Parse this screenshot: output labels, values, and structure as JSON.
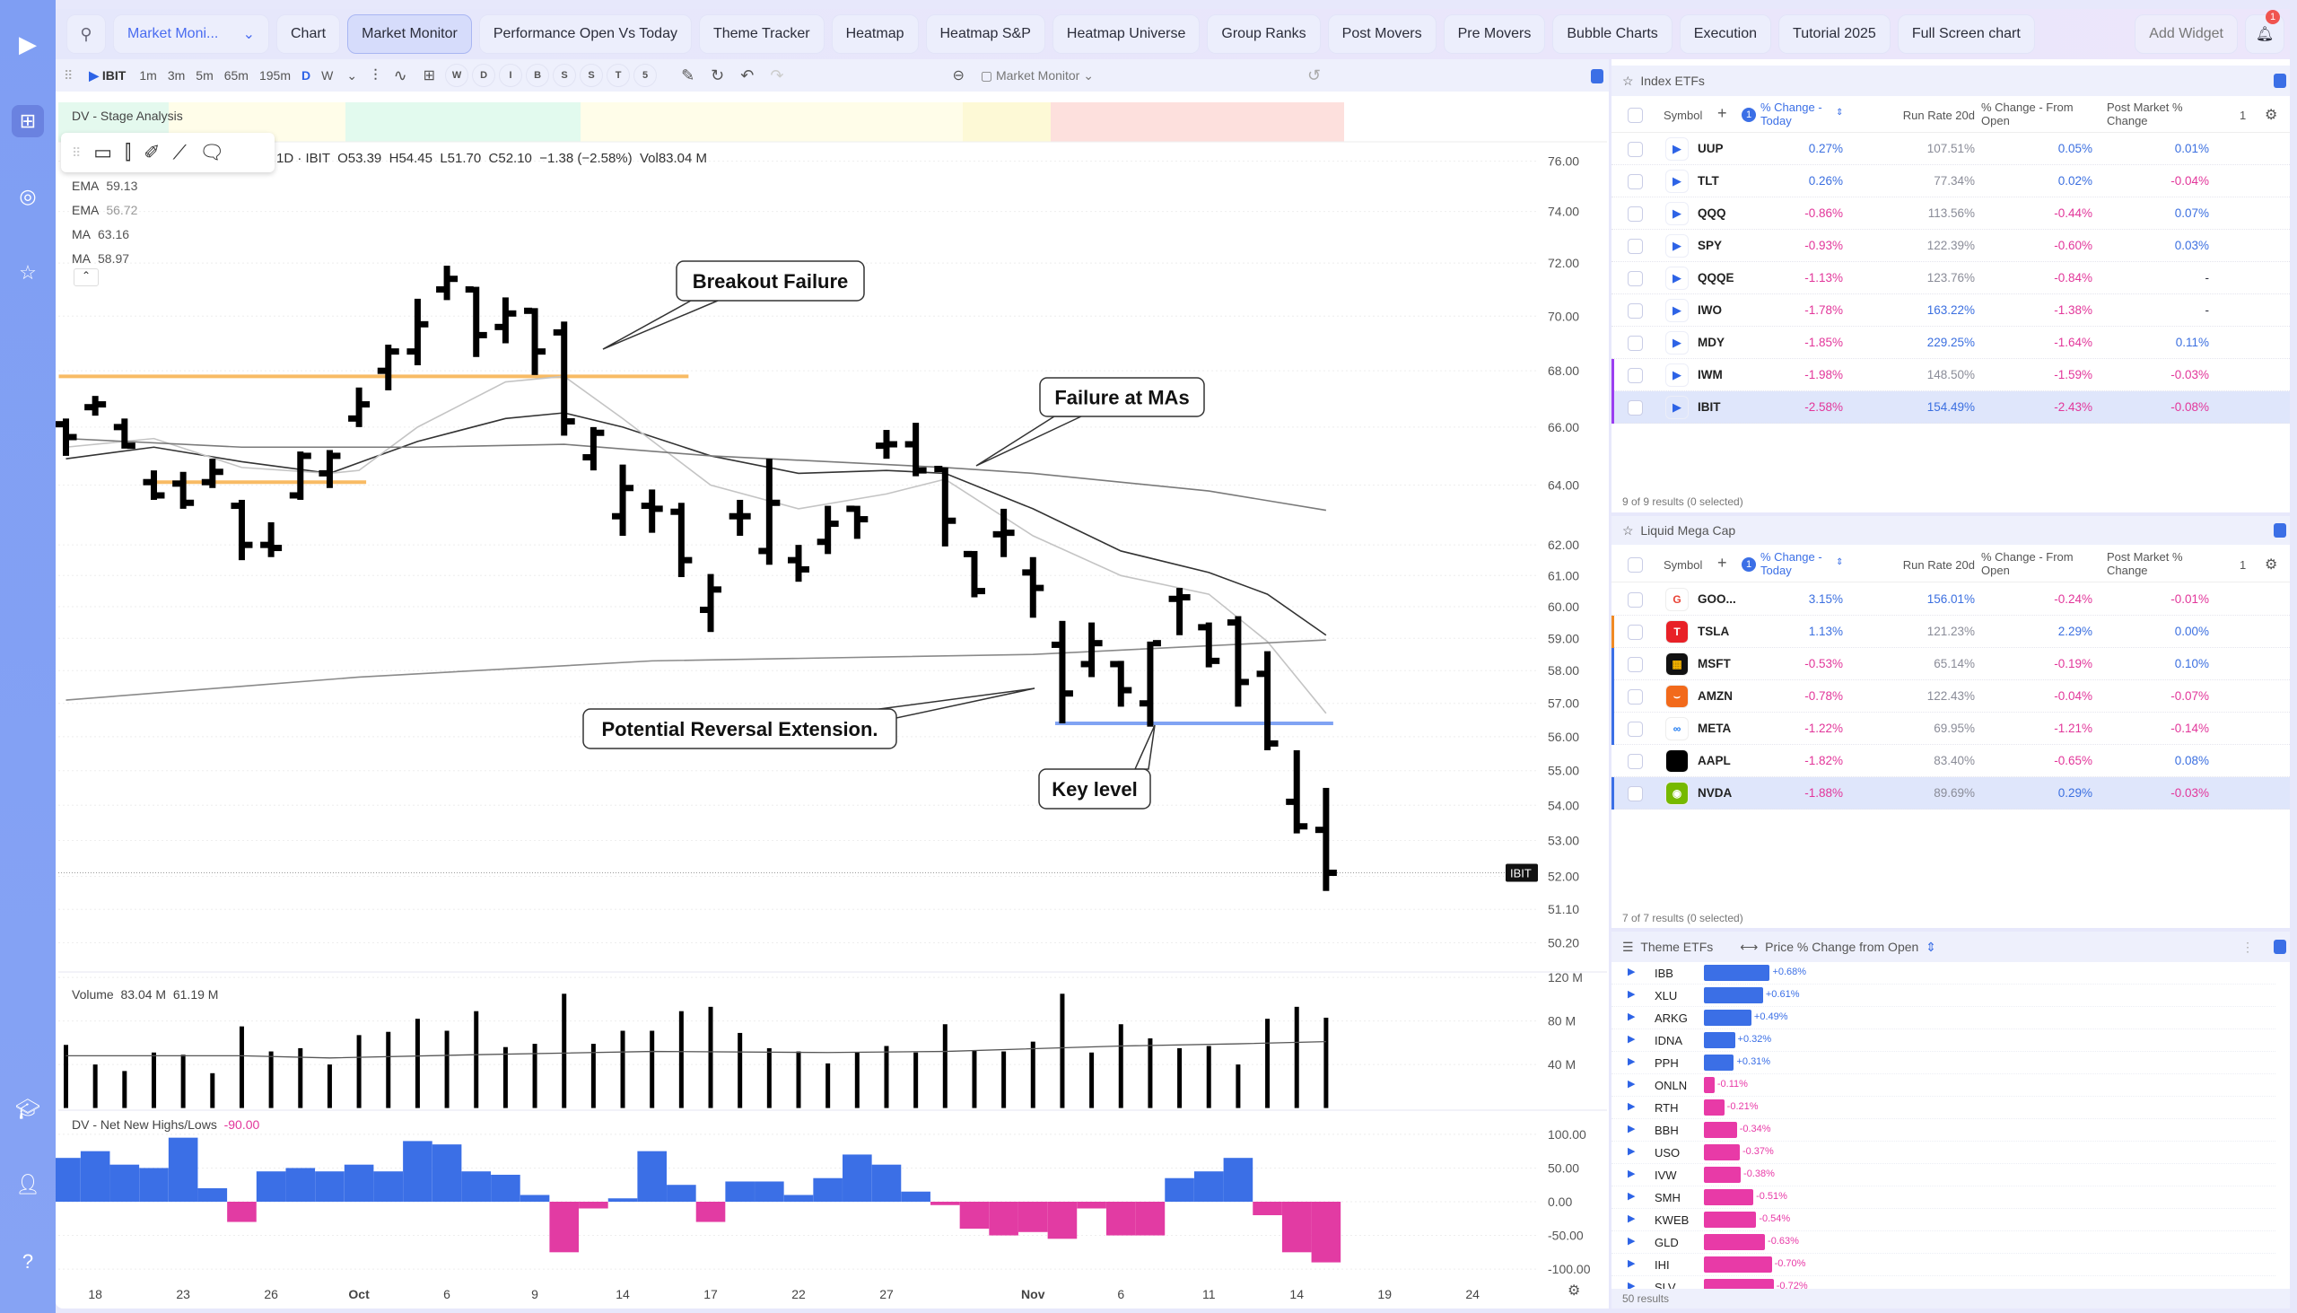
{
  "sidebar": {
    "icons": [
      "logo-icon",
      "layout-icon",
      "target-icon",
      "star-icon",
      "graduation-cap-icon",
      "user-crown-icon",
      "help-icon"
    ]
  },
  "topbar": {
    "layout_dropdown": "Market Moni...",
    "tabs": [
      "Chart",
      "Market Monitor",
      "Performance Open Vs Today",
      "Theme Tracker",
      "Heatmap",
      "Heatmap S&P",
      "Heatmap Universe",
      "Group Ranks",
      "Post Movers",
      "Pre Movers",
      "Bubble Charts",
      "Execution",
      "Tutorial 2025",
      "Full Screen chart"
    ],
    "active_tab": "Market Monitor",
    "add_widget": "Add Widget",
    "notification_count": "1"
  },
  "chart_toolbar": {
    "symbol": "IBIT",
    "intervals": [
      "1m",
      "3m",
      "5m",
      "65m",
      "195m",
      "D",
      "W"
    ],
    "active_interval": "D",
    "study_buttons": [
      "W",
      "D",
      "I",
      "B",
      "S",
      "S",
      "T",
      "5"
    ],
    "layout_name": "Market Monitor"
  },
  "chart": {
    "stage_label": "DV - Stage Analysis",
    "header": "1D · IBIT  O53.39  H54.45  L51.70  C52.10  −1.38 (−2.58%)  Vol83.04 M",
    "legends": [
      {
        "name": "EMA",
        "value": "59.13"
      },
      {
        "name": "EMA",
        "value": "56.72"
      },
      {
        "name": "MA",
        "value": "63.16"
      },
      {
        "name": "MA",
        "value": "58.97"
      }
    ],
    "price_tag": "IBIT",
    "last_price": 52.1,
    "price_ticks": [
      "76.00",
      "74.00",
      "72.00",
      "70.00",
      "68.00",
      "66.00",
      "64.00",
      "62.00",
      "61.00",
      "60.00",
      "59.00",
      "58.00",
      "57.00",
      "56.00",
      "55.00",
      "54.00",
      "53.00",
      "52.00",
      "51.10",
      "50.20"
    ],
    "ohlc": [
      [
        66.1,
        66.3,
        65.0,
        65.65
      ],
      [
        66.7,
        67.1,
        66.4,
        66.8
      ],
      [
        66.0,
        66.3,
        65.25,
        65.35
      ],
      [
        64.1,
        64.5,
        63.5,
        63.65
      ],
      [
        64.05,
        64.45,
        63.2,
        63.4
      ],
      [
        64.1,
        64.9,
        63.9,
        64.45
      ],
      [
        63.3,
        63.5,
        61.5,
        62.0
      ],
      [
        62.0,
        62.75,
        61.6,
        61.9
      ],
      [
        63.65,
        65.15,
        63.5,
        65.0
      ],
      [
        64.4,
        65.2,
        63.9,
        65.0
      ],
      [
        66.3,
        67.4,
        66.0,
        66.8
      ],
      [
        68.0,
        68.95,
        67.3,
        68.7
      ],
      [
        68.7,
        70.65,
        68.2,
        69.7
      ],
      [
        71.0,
        71.9,
        70.6,
        71.4
      ],
      [
        71.0,
        71.1,
        68.5,
        69.3
      ],
      [
        69.6,
        70.7,
        69.0,
        70.1
      ],
      [
        70.2,
        70.3,
        67.85,
        68.7
      ],
      [
        69.4,
        69.8,
        65.7,
        66.2
      ],
      [
        64.95,
        66.0,
        64.5,
        65.8
      ],
      [
        62.95,
        64.7,
        62.3,
        63.9
      ],
      [
        63.3,
        63.85,
        62.4,
        63.2
      ],
      [
        63.1,
        63.4,
        60.95,
        61.5
      ],
      [
        59.9,
        61.05,
        59.2,
        60.55
      ],
      [
        62.95,
        63.5,
        62.3,
        62.95
      ],
      [
        61.8,
        64.9,
        61.35,
        63.4
      ],
      [
        61.5,
        62.0,
        60.8,
        61.2
      ],
      [
        62.1,
        63.3,
        61.7,
        62.7
      ],
      [
        63.2,
        63.3,
        62.2,
        62.85
      ],
      [
        65.35,
        65.9,
        64.9,
        65.4
      ],
      [
        65.4,
        66.15,
        64.3,
        64.5
      ],
      [
        64.55,
        64.6,
        61.95,
        62.8
      ],
      [
        61.7,
        61.8,
        60.3,
        60.5
      ],
      [
        62.35,
        63.2,
        61.6,
        62.4
      ],
      [
        61.1,
        61.6,
        59.65,
        60.6
      ],
      [
        58.8,
        59.55,
        56.4,
        57.3
      ],
      [
        58.2,
        59.5,
        57.8,
        58.85
      ],
      [
        58.2,
        58.3,
        56.9,
        57.4
      ],
      [
        57.0,
        58.9,
        56.3,
        58.85
      ],
      [
        60.25,
        60.6,
        59.1,
        60.3
      ],
      [
        59.35,
        59.5,
        58.1,
        58.3
      ],
      [
        59.5,
        59.7,
        56.9,
        57.65
      ],
      [
        57.9,
        58.6,
        55.6,
        55.8
      ],
      [
        54.1,
        55.6,
        53.2,
        53.4
      ],
      [
        53.3,
        54.5,
        51.6,
        52.1
      ]
    ],
    "ma_lines": [
      {
        "label": "EMA 59.13",
        "color": "#333333",
        "points": [
          [
            0,
            64.9
          ],
          [
            3,
            65.3
          ],
          [
            6,
            64.8
          ],
          [
            9,
            64.4
          ],
          [
            12,
            65.5
          ],
          [
            15,
            66.3
          ],
          [
            17,
            66.5
          ],
          [
            19,
            66.0
          ],
          [
            22,
            65.0
          ],
          [
            25,
            64.4
          ],
          [
            28,
            64.5
          ],
          [
            30,
            64.4
          ],
          [
            33,
            63.2
          ],
          [
            36,
            61.8
          ],
          [
            39,
            61.1
          ],
          [
            41,
            60.4
          ],
          [
            43,
            59.1
          ]
        ]
      },
      {
        "label": "EMA 56.72",
        "color": "#c4c4c4",
        "points": [
          [
            0,
            65.3
          ],
          [
            3,
            65.6
          ],
          [
            6,
            64.6
          ],
          [
            9,
            64.4
          ],
          [
            10,
            64.5
          ],
          [
            12,
            66.0
          ],
          [
            15,
            67.6
          ],
          [
            17,
            67.8
          ],
          [
            19,
            66.3
          ],
          [
            22,
            64.0
          ],
          [
            25,
            63.2
          ],
          [
            28,
            63.7
          ],
          [
            30,
            64.2
          ],
          [
            33,
            62.3
          ],
          [
            36,
            61.0
          ],
          [
            39,
            60.4
          ],
          [
            41,
            58.9
          ],
          [
            43,
            56.7
          ]
        ]
      },
      {
        "label": "MA 63.16",
        "color": "#7a7a7a",
        "points": [
          [
            0,
            65.6
          ],
          [
            6,
            65.3
          ],
          [
            12,
            65.3
          ],
          [
            17,
            65.4
          ],
          [
            22,
            65.0
          ],
          [
            30,
            64.6
          ],
          [
            33,
            64.4
          ],
          [
            39,
            63.8
          ],
          [
            43,
            63.15
          ]
        ]
      },
      {
        "label": "MA 58.97",
        "color": "#8a8a8a",
        "points": [
          [
            0,
            57.1
          ],
          [
            10,
            57.8
          ],
          [
            20,
            58.3
          ],
          [
            33,
            58.5
          ],
          [
            43,
            58.95
          ]
        ]
      }
    ],
    "levels": [
      {
        "price": 67.8,
        "from": 0,
        "to": 21,
        "color": "#f7b04a"
      },
      {
        "price": 64.1,
        "from": 3,
        "to": 10,
        "color": "#f7b04a"
      },
      {
        "price": 56.4,
        "from": 34,
        "to": 43,
        "color": "#6b93f2"
      }
    ],
    "annotations": [
      "Breakout Failure",
      "Failure at MAs",
      "Potential Reversal Extension.",
      "Key level"
    ],
    "volume": {
      "label": "Volume",
      "value": "83.04 M",
      "ma_value": "61.19 M",
      "ticks": [
        "120 M",
        "80 M",
        "40 M"
      ],
      "values_m": [
        58,
        40,
        34,
        51,
        49,
        32,
        75,
        52,
        55,
        40,
        67,
        70,
        82,
        71,
        89,
        56,
        59,
        105,
        59,
        71,
        71,
        89,
        93,
        69,
        55,
        52,
        41,
        51,
        57,
        51,
        77,
        53,
        52,
        61,
        105,
        51,
        77,
        64,
        55,
        57,
        40,
        82,
        93,
        83
      ],
      "ma_m": [
        [
          0,
          48
        ],
        [
          6,
          48
        ],
        [
          9,
          46
        ],
        [
          14,
          49
        ],
        [
          20,
          52
        ],
        [
          26,
          51
        ],
        [
          30,
          52
        ],
        [
          36,
          57
        ],
        [
          40,
          59
        ],
        [
          43,
          61
        ]
      ]
    },
    "nhnl": {
      "label": "DV - Net New Highs/Lows",
      "value": "-90.00",
      "ticks": [
        "100.00",
        "50.00",
        "0.00",
        "-50.00",
        "-100.00"
      ],
      "values": [
        65,
        75,
        55,
        50,
        95,
        20,
        -30,
        45,
        50,
        45,
        55,
        45,
        90,
        85,
        45,
        40,
        10,
        -75,
        -10,
        5,
        75,
        25,
        -30,
        30,
        30,
        10,
        35,
        70,
        55,
        15,
        -5,
        -40,
        -50,
        -45,
        -55,
        -10,
        -50,
        -50,
        35,
        45,
        65,
        -20,
        -75,
        -90
      ]
    },
    "date_labels": [
      [
        1,
        "18"
      ],
      [
        4,
        "23"
      ],
      [
        7,
        "26"
      ],
      [
        10,
        "Oct"
      ],
      [
        13,
        "6"
      ],
      [
        16,
        "9"
      ],
      [
        19,
        "14"
      ],
      [
        22,
        "17"
      ],
      [
        25,
        "22"
      ],
      [
        28,
        "27"
      ],
      [
        33,
        "Nov"
      ],
      [
        36,
        "6"
      ],
      [
        39,
        "11"
      ],
      [
        42,
        "14"
      ],
      [
        45,
        "19"
      ],
      [
        48,
        "24"
      ]
    ]
  },
  "index_etfs": {
    "title": "Index ETFs",
    "columns": {
      "symbol": "Symbol",
      "today": "% Change - Today",
      "run_rate": "Run Rate 20d",
      "from_open": "% Change - From Open",
      "post": "Post Market % Change",
      "count": "1",
      "sort_badge": "1"
    },
    "rows": [
      {
        "symbol": "UUP",
        "today": "0.27%",
        "run_rate": "107.51%",
        "from_open": "0.05%",
        "post": "0.01%"
      },
      {
        "symbol": "TLT",
        "today": "0.26%",
        "run_rate": "77.34%",
        "from_open": "0.02%",
        "post": "-0.04%"
      },
      {
        "symbol": "QQQ",
        "today": "-0.86%",
        "run_rate": "113.56%",
        "from_open": "-0.44%",
        "post": "0.07%"
      },
      {
        "symbol": "SPY",
        "today": "-0.93%",
        "run_rate": "122.39%",
        "from_open": "-0.60%",
        "post": "0.03%"
      },
      {
        "symbol": "QQQE",
        "today": "-1.13%",
        "run_rate": "123.76%",
        "from_open": "-0.84%",
        "post": "-"
      },
      {
        "symbol": "IWO",
        "today": "-1.78%",
        "run_rate": "163.22%",
        "from_open": "-1.38%",
        "post": "-"
      },
      {
        "symbol": "MDY",
        "today": "-1.85%",
        "run_rate": "229.25%",
        "from_open": "-1.64%",
        "post": "0.11%"
      },
      {
        "symbol": "IWM",
        "today": "-1.98%",
        "run_rate": "148.50%",
        "from_open": "-1.59%",
        "post": "-0.03%",
        "marker": "#9b3ff0"
      },
      {
        "symbol": "IBIT",
        "today": "-2.58%",
        "run_rate": "154.49%",
        "from_open": "-2.43%",
        "post": "-0.08%",
        "marker": "#9b3ff0",
        "selected": true
      }
    ],
    "footer": "9 of 9 results (0 selected)"
  },
  "mega_cap": {
    "title": "Liquid Mega Cap",
    "columns": {
      "symbol": "Symbol",
      "today": "% Change - Today",
      "run_rate": "Run Rate 20d",
      "from_open": "% Change - From Open",
      "post": "Post Market % Change",
      "count": "1",
      "sort_badge": "1"
    },
    "rows": [
      {
        "symbol": "GOO...",
        "today": "3.15%",
        "run_rate": "156.01%",
        "from_open": "-0.24%",
        "post": "-0.01%",
        "logo": "G",
        "logo_bg": "#ffffff",
        "logo_fg": "#e94235"
      },
      {
        "symbol": "TSLA",
        "today": "1.13%",
        "run_rate": "121.23%",
        "from_open": "2.29%",
        "post": "0.00%",
        "logo": "T",
        "logo_bg": "#e82127",
        "logo_fg": "#ffffff",
        "marker": "#f08a24"
      },
      {
        "symbol": "MSFT",
        "today": "-0.53%",
        "run_rate": "65.14%",
        "from_open": "-0.19%",
        "post": "0.10%",
        "logo": "▦",
        "logo_bg": "#111111",
        "logo_fg": "#f7b500",
        "marker": "#3b6fe6"
      },
      {
        "symbol": "AMZN",
        "today": "-0.78%",
        "run_rate": "122.43%",
        "from_open": "-0.04%",
        "post": "-0.07%",
        "logo": "⌣",
        "logo_bg": "#f26a1b",
        "logo_fg": "#ffffff",
        "marker": "#3b6fe6"
      },
      {
        "symbol": "META",
        "today": "-1.22%",
        "run_rate": "69.95%",
        "from_open": "-1.21%",
        "post": "-0.14%",
        "logo": "∞",
        "logo_bg": "#ffffff",
        "logo_fg": "#1877f2",
        "marker": "#3b6fe6"
      },
      {
        "symbol": "AAPL",
        "today": "-1.82%",
        "run_rate": "83.40%",
        "from_open": "-0.65%",
        "post": "0.08%",
        "logo": "",
        "logo_bg": "#000000",
        "logo_fg": "#ffffff"
      },
      {
        "symbol": "NVDA",
        "today": "-1.88%",
        "run_rate": "89.69%",
        "from_open": "0.29%",
        "post": "-0.03%",
        "logo": "◉",
        "logo_bg": "#76b900",
        "logo_fg": "#ffffff",
        "marker": "#3b6fe6",
        "selected": true
      }
    ],
    "footer": "7 of 7 results (0 selected)"
  },
  "theme_etfs": {
    "title": "Theme ETFs",
    "metric": "Price % Change from Open",
    "rows": [
      {
        "symbol": "IBB",
        "value": 0.68,
        "label": "+0.68%"
      },
      {
        "symbol": "XLU",
        "value": 0.61,
        "label": "+0.61%"
      },
      {
        "symbol": "ARKG",
        "value": 0.49,
        "label": "+0.49%"
      },
      {
        "symbol": "IDNA",
        "value": 0.32,
        "label": "+0.32%"
      },
      {
        "symbol": "PPH",
        "value": 0.31,
        "label": "+0.31%"
      },
      {
        "symbol": "ONLN",
        "value": -0.11,
        "label": "-0.11%"
      },
      {
        "symbol": "RTH",
        "value": -0.21,
        "label": "-0.21%"
      },
      {
        "symbol": "BBH",
        "value": -0.34,
        "label": "-0.34%"
      },
      {
        "symbol": "USO",
        "value": -0.37,
        "label": "-0.37%"
      },
      {
        "symbol": "IVW",
        "value": -0.38,
        "label": "-0.38%"
      },
      {
        "symbol": "SMH",
        "value": -0.51,
        "label": "-0.51%"
      },
      {
        "symbol": "KWEB",
        "value": -0.54,
        "label": "-0.54%"
      },
      {
        "symbol": "GLD",
        "value": -0.63,
        "label": "-0.63%"
      },
      {
        "symbol": "IHI",
        "value": -0.7,
        "label": "-0.70%"
      },
      {
        "symbol": "SLV",
        "value": -0.72,
        "label": "-0.72%"
      }
    ],
    "footer": "50 results"
  },
  "colors": {
    "positive": "#3b6fe0",
    "negative": "#e2369a",
    "accent": "#3b6fe6"
  }
}
